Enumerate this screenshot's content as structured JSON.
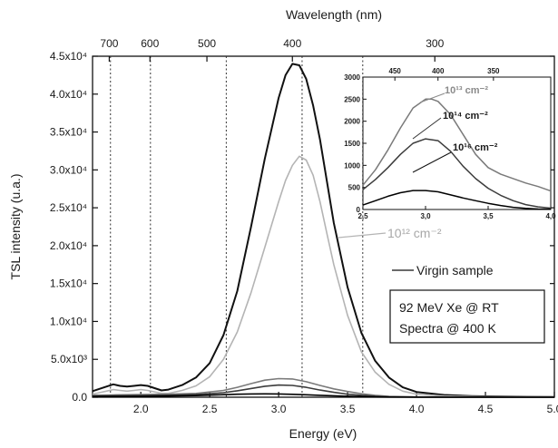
{
  "chart_data": {
    "type": "line",
    "xlabel": "Energy (eV)",
    "ylabel": "TSL intensity (u.a.)",
    "top_axis_label": "Wavelength (nm)",
    "xlim": [
      1.65,
      5.0
    ],
    "ylim": [
      0,
      45000
    ],
    "x_ticks": [
      {
        "v": 2.0,
        "label": "2.0"
      },
      {
        "v": 2.5,
        "label": "2.5"
      },
      {
        "v": 3.0,
        "label": "3.0"
      },
      {
        "v": 3.5,
        "label": "3.5"
      },
      {
        "v": 4.0,
        "label": "4.0"
      },
      {
        "v": 4.5,
        "label": "4.5"
      },
      {
        "v": 5.0,
        "label": "5.0"
      }
    ],
    "y_ticks": [
      {
        "v": 0,
        "label": "0.0"
      },
      {
        "v": 5000,
        "label": "5.0x10³"
      },
      {
        "v": 10000,
        "label": "1.0x10⁴"
      },
      {
        "v": 15000,
        "label": "1.5x10⁴"
      },
      {
        "v": 20000,
        "label": "2.0x10⁴"
      },
      {
        "v": 25000,
        "label": "2.5x10⁴"
      },
      {
        "v": 30000,
        "label": "3.0x10⁴"
      },
      {
        "v": 35000,
        "label": "3.5x10⁴"
      },
      {
        "v": 40000,
        "label": "4.0x10⁴"
      },
      {
        "v": 45000,
        "label": "4.5x10⁴"
      }
    ],
    "top_ticks": [
      {
        "nm": 700,
        "label": "700"
      },
      {
        "nm": 600,
        "label": "600"
      },
      {
        "nm": 500,
        "label": "500"
      },
      {
        "nm": 400,
        "label": "400"
      },
      {
        "nm": 300,
        "label": "300"
      }
    ],
    "vertical_dotted_lines_eV": [
      1.78,
      2.07,
      2.62,
      3.17,
      3.61
    ],
    "series": [
      {
        "name": "Virgin sample",
        "color": "#111111",
        "x": [
          1.65,
          1.7,
          1.75,
          1.8,
          1.85,
          1.9,
          1.95,
          2.0,
          2.05,
          2.1,
          2.15,
          2.2,
          2.3,
          2.4,
          2.5,
          2.6,
          2.7,
          2.8,
          2.9,
          3.0,
          3.05,
          3.1,
          3.15,
          3.2,
          3.25,
          3.3,
          3.35,
          3.4,
          3.5,
          3.6,
          3.7,
          3.8,
          3.9,
          4.0,
          4.2,
          4.4,
          4.6,
          4.8,
          5.0
        ],
        "y": [
          800,
          1100,
          1400,
          1700,
          1500,
          1400,
          1500,
          1600,
          1500,
          1200,
          900,
          1000,
          1600,
          2600,
          4500,
          8200,
          14000,
          22500,
          31500,
          39500,
          42500,
          44000,
          43800,
          42000,
          38500,
          34000,
          28500,
          23000,
          14500,
          8500,
          4800,
          2600,
          1300,
          700,
          300,
          150,
          80,
          50,
          40
        ]
      },
      {
        "name": "10¹² cm⁻²",
        "color": "#b4b4b4",
        "x": [
          1.65,
          1.7,
          1.75,
          1.8,
          1.85,
          1.9,
          1.95,
          2.0,
          2.05,
          2.1,
          2.15,
          2.2,
          2.3,
          2.4,
          2.5,
          2.6,
          2.7,
          2.8,
          2.9,
          3.0,
          3.05,
          3.1,
          3.15,
          3.2,
          3.25,
          3.3,
          3.35,
          3.4,
          3.5,
          3.6,
          3.7,
          3.8,
          3.9,
          4.0,
          4.2,
          4.4,
          4.6,
          4.8,
          5.0
        ],
        "y": [
          400,
          600,
          800,
          1000,
          900,
          800,
          900,
          1000,
          900,
          700,
          500,
          500,
          900,
          1500,
          2700,
          5000,
          8600,
          13800,
          19800,
          25800,
          28600,
          30600,
          31800,
          31300,
          29300,
          25800,
          21600,
          17500,
          10800,
          6000,
          3300,
          1700,
          800,
          400,
          150,
          80,
          40,
          20,
          10
        ]
      },
      {
        "name": "10¹³ cm⁻²",
        "color": "#7a7a7a",
        "x": [
          1.65,
          1.8,
          2.0,
          2.2,
          2.4,
          2.6,
          2.7,
          2.8,
          2.9,
          3.0,
          3.1,
          3.2,
          3.3,
          3.4,
          3.5,
          3.6,
          3.7,
          3.8,
          4.0,
          4.5,
          5.0
        ],
        "y": [
          250,
          300,
          350,
          400,
          500,
          900,
          1300,
          1800,
          2250,
          2450,
          2400,
          2050,
          1550,
          1100,
          750,
          450,
          250,
          120,
          40,
          10,
          0
        ]
      },
      {
        "name": "10¹⁴ cm⁻²",
        "color": "#3c3c3c",
        "x": [
          1.65,
          1.8,
          2.0,
          2.2,
          2.4,
          2.6,
          2.7,
          2.8,
          2.9,
          3.0,
          3.1,
          3.2,
          3.3,
          3.4,
          3.5,
          3.6,
          3.7,
          3.8,
          4.0,
          4.5,
          5.0
        ],
        "y": [
          150,
          200,
          220,
          260,
          350,
          600,
          850,
          1150,
          1450,
          1600,
          1550,
          1300,
          950,
          650,
          400,
          250,
          130,
          60,
          20,
          5,
          0
        ]
      },
      {
        "name": "10¹⁶ cm⁻²",
        "color": "#000000",
        "x": [
          1.65,
          1.8,
          2.0,
          2.2,
          2.4,
          2.6,
          2.7,
          2.8,
          2.9,
          3.0,
          3.1,
          3.2,
          3.3,
          3.4,
          3.5,
          3.6,
          3.7,
          3.8,
          4.0,
          4.5,
          5.0
        ],
        "y": [
          80,
          100,
          120,
          150,
          220,
          330,
          400,
          430,
          440,
          430,
          380,
          320,
          250,
          190,
          130,
          80,
          40,
          20,
          5,
          0,
          0
        ]
      }
    ],
    "annotations": {
      "virgin_label": "Virgin sample",
      "dose12_label": "10¹² cm⁻²",
      "info_line1": "92 MeV Xe @ RT",
      "info_line2": "Spectra @ 400 K"
    },
    "inset": {
      "xlim": [
        2.5,
        4.0
      ],
      "ylim": [
        0,
        3000
      ],
      "x_ticks": [
        {
          "v": 2.5,
          "label": "2,5"
        },
        {
          "v": 3.0,
          "label": "3,0"
        },
        {
          "v": 3.5,
          "label": "3,5"
        },
        {
          "v": 4.0,
          "label": "4,0"
        }
      ],
      "y_ticks": [
        {
          "v": 0,
          "label": "0"
        },
        {
          "v": 500,
          "label": "500"
        },
        {
          "v": 1000,
          "label": "1000"
        },
        {
          "v": 1500,
          "label": "1500"
        },
        {
          "v": 2000,
          "label": "2000"
        },
        {
          "v": 2500,
          "label": "2500"
        },
        {
          "v": 3000,
          "label": "3000"
        }
      ],
      "top_ticks": [
        {
          "nm": 450,
          "label": "450"
        },
        {
          "nm": 400,
          "label": "400"
        },
        {
          "nm": 350,
          "label": "350"
        }
      ],
      "labels": {
        "dose13": "10¹³ cm⁻²",
        "dose14": "10¹⁴ cm⁻²",
        "dose16": "10¹⁶ cm⁻²"
      },
      "series": [
        {
          "name": "10¹³ cm⁻²",
          "color": "#7a7a7a",
          "x": [
            2.5,
            2.6,
            2.7,
            2.8,
            2.9,
            3.0,
            3.05,
            3.1,
            3.2,
            3.3,
            3.4,
            3.5,
            3.6,
            3.7,
            3.8,
            3.9,
            4.0
          ],
          "y": [
            550,
            900,
            1350,
            1850,
            2300,
            2500,
            2500,
            2450,
            2150,
            1700,
            1250,
            950,
            800,
            700,
            600,
            520,
            420
          ]
        },
        {
          "name": "10¹⁴ cm⁻²",
          "color": "#3c3c3c",
          "x": [
            2.5,
            2.6,
            2.7,
            2.8,
            2.9,
            3.0,
            3.1,
            3.2,
            3.3,
            3.4,
            3.5,
            3.6,
            3.7,
            3.8,
            3.9,
            4.0
          ],
          "y": [
            450,
            680,
            950,
            1250,
            1500,
            1600,
            1560,
            1320,
            980,
            700,
            480,
            320,
            200,
            110,
            60,
            30
          ]
        },
        {
          "name": "10¹⁶ cm⁻²",
          "color": "#000000",
          "x": [
            2.5,
            2.6,
            2.7,
            2.8,
            2.9,
            3.0,
            3.1,
            3.2,
            3.3,
            3.4,
            3.5,
            3.6,
            3.7,
            3.8,
            3.9,
            4.0
          ],
          "y": [
            100,
            200,
            300,
            380,
            430,
            430,
            400,
            330,
            260,
            200,
            140,
            90,
            50,
            25,
            10,
            5
          ]
        }
      ]
    }
  }
}
